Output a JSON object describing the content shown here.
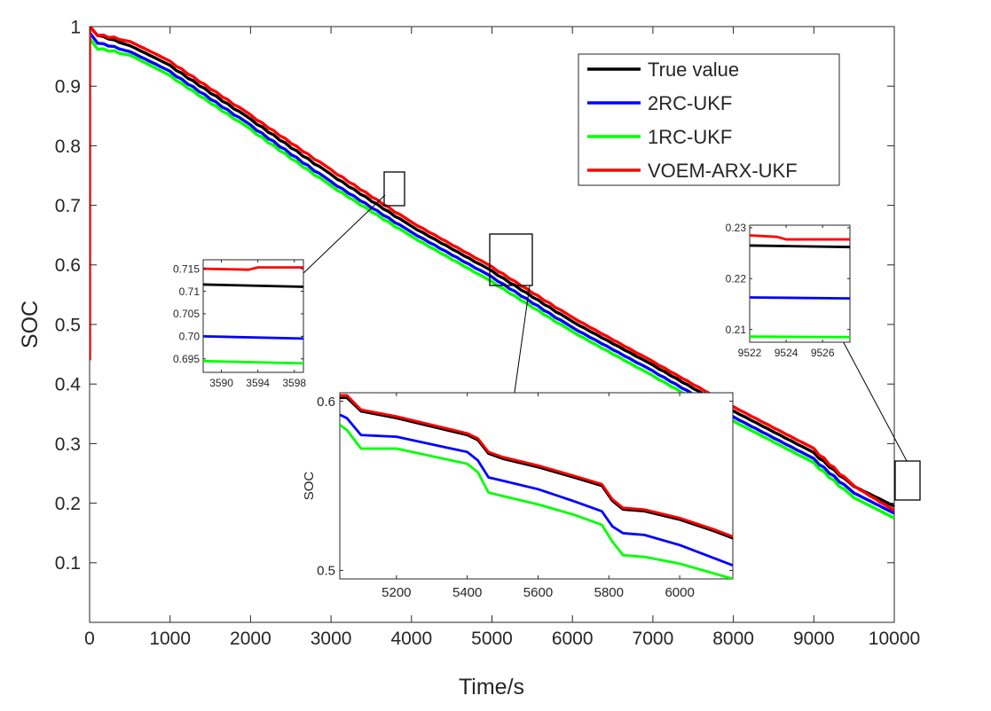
{
  "chart_data": [
    {
      "type": "line",
      "xlabel": "Time/s",
      "ylabel": "SOC",
      "xlim": [
        0,
        10000
      ],
      "ylim": [
        0,
        1
      ],
      "xticks": [
        0,
        1000,
        2000,
        3000,
        4000,
        5000,
        6000,
        7000,
        8000,
        9000,
        10000
      ],
      "yticks": [
        0.1,
        0.2,
        0.3,
        0.4,
        0.5,
        0.6,
        0.7,
        0.8,
        0.9,
        1
      ],
      "xtick_labels": [
        "0",
        "1000",
        "2000",
        "3000",
        "4000",
        "5000",
        "6000",
        "7000",
        "8000",
        "9000",
        "10000"
      ],
      "ytick_labels": [
        "0.1",
        "0.2",
        "0.3",
        "0.4",
        "0.5",
        "0.6",
        "0.7",
        "0.8",
        "0.9",
        "1"
      ],
      "legend_position": "top-right",
      "series": [
        {
          "name": "True value",
          "color": "#000000",
          "x": [
            0,
            100,
            500,
            1000,
            2000,
            3000,
            4000,
            5000,
            6000,
            7000,
            8000,
            9000,
            9500,
            10000
          ],
          "values": [
            1.0,
            0.985,
            0.968,
            0.935,
            0.845,
            0.752,
            0.665,
            0.59,
            0.505,
            0.432,
            0.355,
            0.285,
            0.228,
            0.195
          ]
        },
        {
          "name": "2RC-UKF",
          "color": "#0000ff",
          "x": [
            0,
            100,
            500,
            1000,
            2000,
            3000,
            4000,
            5000,
            6000,
            7000,
            8000,
            9000,
            9500,
            10000
          ],
          "values": [
            0.99,
            0.972,
            0.958,
            0.925,
            0.835,
            0.74,
            0.655,
            0.58,
            0.495,
            0.422,
            0.345,
            0.275,
            0.217,
            0.183
          ]
        },
        {
          "name": "1RC-UKF",
          "color": "#00ff00",
          "x": [
            0,
            100,
            500,
            1000,
            2000,
            3000,
            4000,
            5000,
            6000,
            7000,
            8000,
            9000,
            9500,
            10000
          ],
          "values": [
            0.98,
            0.962,
            0.952,
            0.918,
            0.828,
            0.733,
            0.648,
            0.572,
            0.488,
            0.414,
            0.338,
            0.268,
            0.209,
            0.175
          ]
        },
        {
          "name": "VOEM-ARX-UKF",
          "color": "#ff0000",
          "x": [
            0,
            0,
            100,
            500,
            1000,
            2000,
            3000,
            4000,
            5000,
            6000,
            7000,
            8000,
            9000,
            9500,
            10000
          ],
          "values": [
            0.44,
            1.0,
            0.985,
            0.975,
            0.942,
            0.852,
            0.76,
            0.672,
            0.597,
            0.512,
            0.438,
            0.362,
            0.292,
            0.229,
            0.188
          ]
        }
      ]
    },
    {
      "type": "line",
      "note": "inset zoom around t=3590-3598",
      "xlim": [
        3588,
        3599
      ],
      "ylim": [
        0.692,
        0.717
      ],
      "xticks": [
        3590,
        3594,
        3598
      ],
      "yticks": [
        0.695,
        0.7,
        0.705,
        0.71,
        0.715
      ],
      "xtick_labels": [
        "3590",
        "3594",
        "3598"
      ],
      "ytick_labels": [
        "0.695",
        "0.70",
        "0.705",
        "0.71",
        "0.715"
      ],
      "series": [
        {
          "name": "VOEM-ARX-UKF",
          "x": [
            3588,
            3593,
            3594,
            3599
          ],
          "values": [
            0.715,
            0.7148,
            0.7153,
            0.7153
          ]
        },
        {
          "name": "True value",
          "x": [
            3588,
            3599
          ],
          "values": [
            0.7115,
            0.711
          ]
        },
        {
          "name": "2RC-UKF",
          "x": [
            3588,
            3599
          ],
          "values": [
            0.7,
            0.6995
          ]
        },
        {
          "name": "1RC-UKF",
          "x": [
            3588,
            3599
          ],
          "values": [
            0.6945,
            0.694
          ]
        }
      ]
    },
    {
      "type": "line",
      "note": "inset zoom around t=5000-6150",
      "ylabel": "SOC",
      "xlim": [
        5040,
        6150
      ],
      "ylim": [
        0.495,
        0.605
      ],
      "xticks": [
        5200,
        5400,
        5600,
        5800,
        6000
      ],
      "yticks": [
        0.5,
        0.6
      ],
      "xtick_labels": [
        "5200",
        "5400",
        "5600",
        "5800",
        "6000"
      ],
      "ytick_labels": [
        "0.5",
        "0.6"
      ],
      "series": [
        {
          "name": "True value",
          "x": [
            5040,
            5060,
            5100,
            5200,
            5400,
            5430,
            5460,
            5500,
            5600,
            5700,
            5780,
            5810,
            5840,
            5900,
            6000,
            6100,
            6150
          ],
          "values": [
            0.602,
            0.602,
            0.594,
            0.59,
            0.58,
            0.577,
            0.569,
            0.566,
            0.561,
            0.555,
            0.55,
            0.541,
            0.536,
            0.535,
            0.53,
            0.523,
            0.519
          ]
        },
        {
          "name": "VOEM-ARX-UKF",
          "x": [
            5040,
            5060,
            5100,
            5200,
            5400,
            5430,
            5460,
            5500,
            5600,
            5700,
            5780,
            5810,
            5840,
            5900,
            6000,
            6100,
            6150
          ],
          "values": [
            0.6035,
            0.6035,
            0.595,
            0.591,
            0.581,
            0.578,
            0.57,
            0.567,
            0.562,
            0.556,
            0.551,
            0.542,
            0.537,
            0.536,
            0.531,
            0.524,
            0.52
          ]
        },
        {
          "name": "2RC-UKF",
          "x": [
            5040,
            5060,
            5100,
            5200,
            5400,
            5430,
            5460,
            5500,
            5600,
            5700,
            5780,
            5810,
            5840,
            5900,
            6000,
            6100,
            6150
          ],
          "values": [
            0.592,
            0.59,
            0.58,
            0.579,
            0.57,
            0.565,
            0.555,
            0.553,
            0.548,
            0.541,
            0.535,
            0.526,
            0.522,
            0.521,
            0.515,
            0.507,
            0.503
          ]
        },
        {
          "name": "1RC-UKF",
          "x": [
            5040,
            5060,
            5100,
            5200,
            5400,
            5430,
            5460,
            5500,
            5600,
            5700,
            5780,
            5810,
            5840,
            5900,
            6000,
            6100,
            6150
          ],
          "values": [
            0.586,
            0.583,
            0.572,
            0.572,
            0.563,
            0.558,
            0.546,
            0.544,
            0.539,
            0.533,
            0.527,
            0.517,
            0.509,
            0.508,
            0.504,
            0.498,
            0.495
          ]
        }
      ]
    },
    {
      "type": "line",
      "note": "inset zoom around t=9522-9526",
      "xlim": [
        9522,
        9527.5
      ],
      "ylim": [
        0.2075,
        0.2305
      ],
      "xticks": [
        9522,
        9524,
        9526
      ],
      "yticks": [
        0.21,
        0.22,
        0.23
      ],
      "xtick_labels": [
        "9522",
        "9524",
        "9526"
      ],
      "ytick_labels": [
        "0.21",
        "0.22",
        "0.23"
      ],
      "series": [
        {
          "name": "VOEM-ARX-UKF",
          "x": [
            9522,
            9523.5,
            9524,
            9527.5
          ],
          "values": [
            0.2285,
            0.2282,
            0.2277,
            0.2277
          ]
        },
        {
          "name": "True value",
          "x": [
            9522,
            9527.5
          ],
          "values": [
            0.2265,
            0.2262
          ]
        },
        {
          "name": "2RC-UKF",
          "x": [
            9522,
            9527.5
          ],
          "values": [
            0.2163,
            0.2161
          ]
        },
        {
          "name": "1RC-UKF",
          "x": [
            9522,
            9527.5
          ],
          "values": [
            0.2086,
            0.2085
          ]
        }
      ]
    }
  ]
}
